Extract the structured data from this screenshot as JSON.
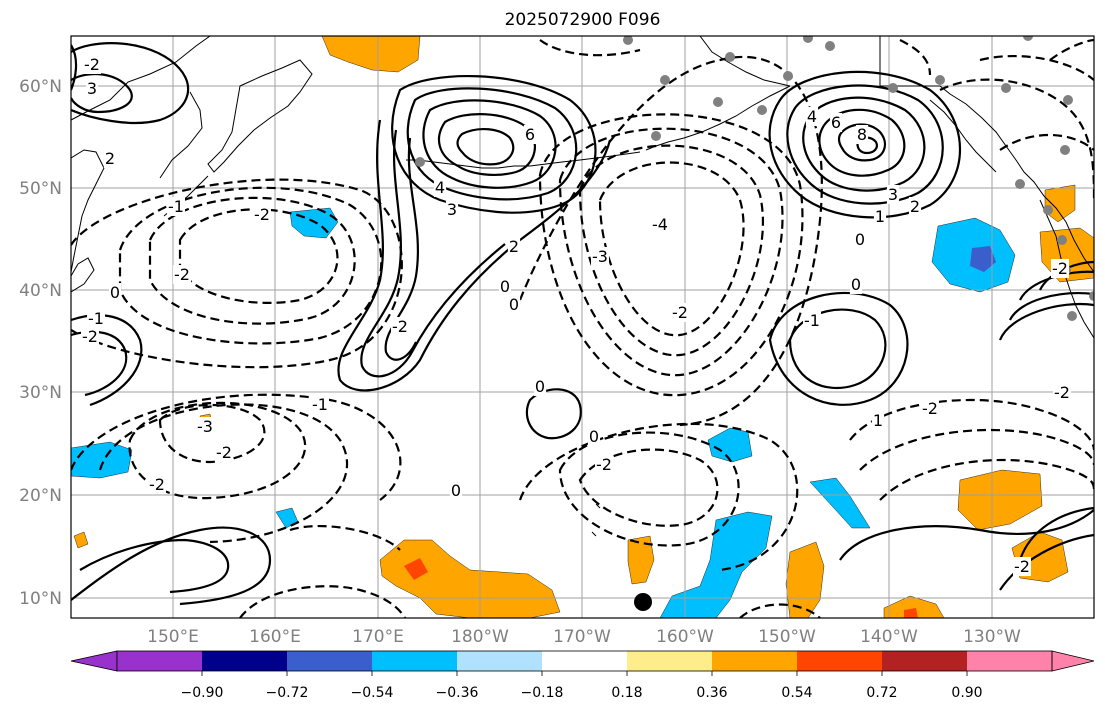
{
  "title": "2025072900 F096",
  "axes": {
    "lat_labels": [
      "60°N",
      "50°N",
      "40°N",
      "30°N",
      "20°N",
      "10°N"
    ],
    "lon_labels": [
      "150°E",
      "160°E",
      "170°E",
      "180°W",
      "170°W",
      "160°W",
      "150°W",
      "140°W",
      "130°W"
    ]
  },
  "colorbar": {
    "colors": [
      "#9932cc",
      "#00008b",
      "#3a5fcd",
      "#00bfff",
      "#b0e2ff",
      "#ffffff",
      "#ffec8b",
      "#ffa500",
      "#ff4500",
      "#b22222",
      "#ff82ab"
    ],
    "labels": [
      "−0.90",
      "−0.72",
      "−0.54",
      "−0.36",
      "−0.18",
      "0.18",
      "0.36",
      "0.54",
      "0.72",
      "0.90"
    ]
  },
  "contour_labels": [
    {
      "text": "-2"
    },
    {
      "text": "3"
    },
    {
      "text": "2"
    },
    {
      "text": "6"
    },
    {
      "text": "4"
    },
    {
      "text": "3"
    },
    {
      "text": "2"
    },
    {
      "text": "8"
    },
    {
      "text": "6"
    },
    {
      "text": "4"
    },
    {
      "text": "3"
    },
    {
      "text": "1"
    },
    {
      "text": "2"
    },
    {
      "text": "0"
    },
    {
      "text": "-2"
    },
    {
      "text": "-1"
    },
    {
      "text": "-2"
    },
    {
      "text": "-4"
    },
    {
      "text": "-3"
    },
    {
      "text": "-2"
    },
    {
      "text": "-2"
    },
    {
      "text": "0"
    },
    {
      "text": "0"
    },
    {
      "text": "0"
    },
    {
      "text": "-1"
    },
    {
      "text": "-2"
    },
    {
      "text": "-1"
    },
    {
      "text": "0"
    },
    {
      "text": "-2"
    },
    {
      "text": "-3"
    },
    {
      "text": "-2"
    },
    {
      "text": "-2"
    },
    {
      "text": "0"
    },
    {
      "text": "0"
    },
    {
      "text": "-2"
    },
    {
      "text": "1"
    },
    {
      "text": "0"
    },
    {
      "text": "-1"
    },
    {
      "text": "-2"
    },
    {
      "text": "-2"
    },
    {
      "text": "-2"
    }
  ]
}
